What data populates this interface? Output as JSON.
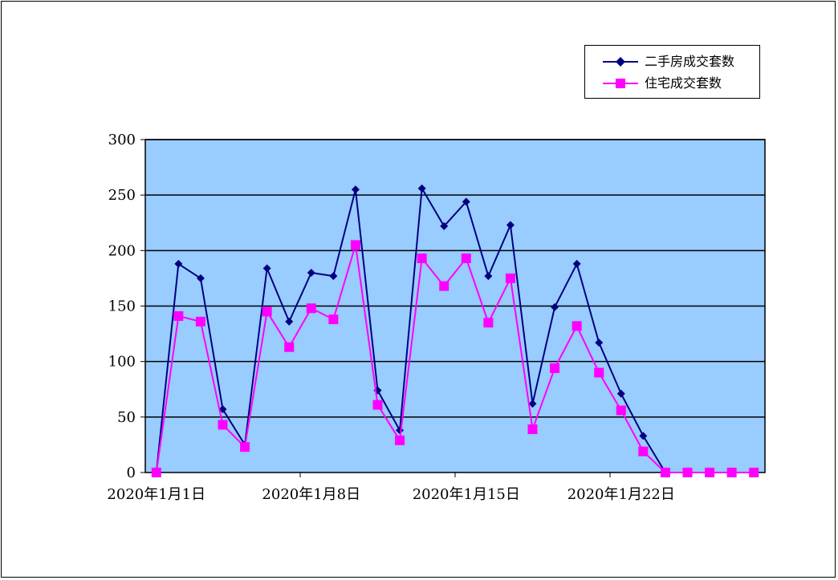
{
  "colors": {
    "plot_background": "#99ccff",
    "series_1": "#000080",
    "series_2": "#ff00ff",
    "gridline": "#000000"
  },
  "chart_data": {
    "type": "line",
    "title": "",
    "xlabel": "",
    "ylabel": "",
    "ylim": [
      0,
      300
    ],
    "yticks": [
      0,
      50,
      100,
      150,
      200,
      250,
      300
    ],
    "x": [
      "2020-01-01",
      "2020-01-02",
      "2020-01-03",
      "2020-01-04",
      "2020-01-05",
      "2020-01-06",
      "2020-01-07",
      "2020-01-08",
      "2020-01-09",
      "2020-01-10",
      "2020-01-11",
      "2020-01-12",
      "2020-01-13",
      "2020-01-14",
      "2020-01-15",
      "2020-01-16",
      "2020-01-17",
      "2020-01-18",
      "2020-01-19",
      "2020-01-20",
      "2020-01-21",
      "2020-01-22",
      "2020-01-23",
      "2020-01-24",
      "2020-01-25",
      "2020-01-26",
      "2020-01-27",
      "2020-01-28"
    ],
    "xtick_labels": [
      {
        "x": "2020-01-01",
        "label": "2020年1月1日"
      },
      {
        "x": "2020-01-08",
        "label": "2020年1月8日"
      },
      {
        "x": "2020-01-15",
        "label": "2020年1月15日"
      },
      {
        "x": "2020-01-22",
        "label": "2020年1月22日"
      }
    ],
    "grid": true,
    "legend_position": "top-right",
    "series": [
      {
        "name": "二手房成交套数",
        "marker": "diamond",
        "color": "#000080",
        "values": [
          0,
          188,
          175,
          57,
          25,
          184,
          136,
          180,
          177,
          255,
          74,
          38,
          256,
          222,
          244,
          177,
          223,
          62,
          149,
          188,
          117,
          71,
          33,
          0,
          0,
          0,
          0,
          0
        ]
      },
      {
        "name": "住宅成交套数",
        "marker": "square",
        "color": "#ff00ff",
        "values": [
          0,
          141,
          136,
          43,
          23,
          145,
          113,
          148,
          138,
          205,
          61,
          29,
          193,
          168,
          193,
          135,
          175,
          39,
          94,
          132,
          90,
          56,
          19,
          0,
          0,
          0,
          0,
          0
        ]
      }
    ]
  }
}
